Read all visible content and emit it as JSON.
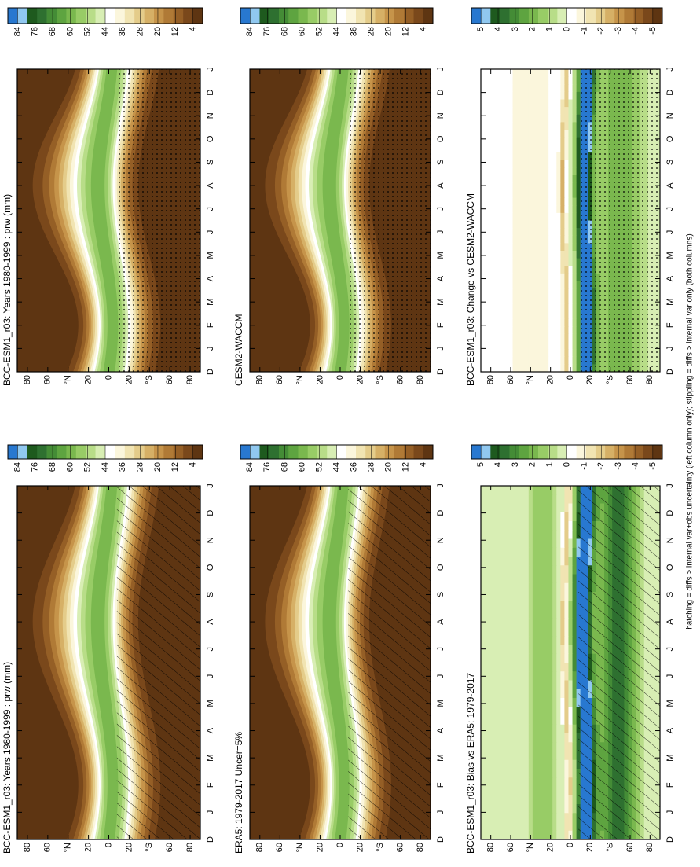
{
  "chart_data": [
    {
      "type": "contour",
      "field": "mean",
      "title": "BCC-ESM1_r03: Years 1980-1999 : prw (mm)",
      "categories": [
        "D",
        "J",
        "F",
        "M",
        "A",
        "M",
        "J",
        "J",
        "A",
        "S",
        "O",
        "N",
        "D",
        "J"
      ],
      "ylim": [
        90,
        -90
      ],
      "yticks": [
        80,
        60,
        {
          "value": 40,
          "label": "°N"
        },
        20,
        0,
        {
          "value": -20,
          "label": "20"
        },
        {
          "value": -40,
          "label": "°S"
        },
        {
          "value": -60,
          "label": "60"
        },
        {
          "value": -80,
          "label": "80"
        }
      ],
      "hatching": true,
      "stippling": false,
      "colorbar": {
        "ticks": [
          84,
          76,
          68,
          60,
          52,
          44,
          36,
          28,
          20,
          12,
          4
        ],
        "colors": [
          "#2878d0",
          "#90c8f0",
          "#1e5a1e",
          "#2e7030",
          "#448c36",
          "#5ea440",
          "#7ab84e",
          "#98cc66",
          "#b8dd88",
          "#d8eeb4",
          "#ffffff",
          "#fbf6dc",
          "#f1e4b2",
          "#e4cc8a",
          "#d6b066",
          "#c6944a",
          "#b07a36",
          "#955f26",
          "#7a481b",
          "#5e3512"
        ]
      }
    },
    {
      "type": "contour",
      "field": "mean",
      "title": "BCC-ESM1_r03: Years 1980-1999 : prw (mm)",
      "categories": [
        "D",
        "J",
        "F",
        "M",
        "A",
        "M",
        "J",
        "J",
        "A",
        "S",
        "O",
        "N",
        "D",
        "J"
      ],
      "ylim": [
        90,
        -90
      ],
      "yticks": [
        80,
        60,
        {
          "value": 40,
          "label": "°N"
        },
        20,
        0,
        {
          "value": -20,
          "label": "20"
        },
        {
          "value": -40,
          "label": "°S"
        },
        {
          "value": -60,
          "label": "60"
        },
        {
          "value": -80,
          "label": "80"
        }
      ],
      "hatching": false,
      "stippling": true,
      "colorbar": {
        "ticks": [
          84,
          76,
          68,
          60,
          52,
          44,
          36,
          28,
          20,
          12,
          4
        ],
        "colors": [
          "#2878d0",
          "#90c8f0",
          "#1e5a1e",
          "#2e7030",
          "#448c36",
          "#5ea440",
          "#7ab84e",
          "#98cc66",
          "#b8dd88",
          "#d8eeb4",
          "#ffffff",
          "#fbf6dc",
          "#f1e4b2",
          "#e4cc8a",
          "#d6b066",
          "#c6944a",
          "#b07a36",
          "#955f26",
          "#7a481b",
          "#5e3512"
        ]
      }
    },
    {
      "type": "contour",
      "field": "mean",
      "title": "ERA5: 1979-2017 Uncer=5%",
      "categories": [
        "D",
        "J",
        "F",
        "M",
        "A",
        "M",
        "J",
        "J",
        "A",
        "S",
        "O",
        "N",
        "D",
        "J"
      ],
      "ylim": [
        90,
        -90
      ],
      "yticks": [
        80,
        60,
        {
          "value": 40,
          "label": "°N"
        },
        20,
        0,
        {
          "value": -20,
          "label": "20"
        },
        {
          "value": -40,
          "label": "°S"
        },
        {
          "value": -60,
          "label": "60"
        },
        {
          "value": -80,
          "label": "80"
        }
      ],
      "hatching": true,
      "stippling": false,
      "colorbar": {
        "ticks": [
          84,
          76,
          68,
          60,
          52,
          44,
          36,
          28,
          20,
          12,
          4
        ],
        "colors": [
          "#2878d0",
          "#90c8f0",
          "#1e5a1e",
          "#2e7030",
          "#448c36",
          "#5ea440",
          "#7ab84e",
          "#98cc66",
          "#b8dd88",
          "#d8eeb4",
          "#ffffff",
          "#fbf6dc",
          "#f1e4b2",
          "#e4cc8a",
          "#d6b066",
          "#c6944a",
          "#b07a36",
          "#955f26",
          "#7a481b",
          "#5e3512"
        ]
      }
    },
    {
      "type": "contour",
      "field": "mean",
      "title": "CESM2-WACCM",
      "categories": [
        "D",
        "J",
        "F",
        "M",
        "A",
        "M",
        "J",
        "J",
        "A",
        "S",
        "O",
        "N",
        "D",
        "J"
      ],
      "ylim": [
        90,
        -90
      ],
      "yticks": [
        80,
        60,
        {
          "value": 40,
          "label": "°N"
        },
        20,
        0,
        {
          "value": -20,
          "label": "20"
        },
        {
          "value": -40,
          "label": "°S"
        },
        {
          "value": -60,
          "label": "60"
        },
        {
          "value": -80,
          "label": "80"
        }
      ],
      "hatching": false,
      "stippling": true,
      "colorbar": {
        "ticks": [
          84,
          76,
          68,
          60,
          52,
          44,
          36,
          28,
          20,
          12,
          4
        ],
        "colors": [
          "#2878d0",
          "#90c8f0",
          "#1e5a1e",
          "#2e7030",
          "#448c36",
          "#5ea440",
          "#7ab84e",
          "#98cc66",
          "#b8dd88",
          "#d8eeb4",
          "#ffffff",
          "#fbf6dc",
          "#f1e4b2",
          "#e4cc8a",
          "#d6b066",
          "#c6944a",
          "#b07a36",
          "#955f26",
          "#7a481b",
          "#5e3512"
        ]
      }
    },
    {
      "type": "contour",
      "field": "bias",
      "title": "BCC-ESM1_r03: Bias vs ERA5: 1979-2017",
      "categories": [
        "D",
        "J",
        "F",
        "M",
        "A",
        "M",
        "J",
        "J",
        "A",
        "S",
        "O",
        "N",
        "D",
        "J"
      ],
      "ylim": [
        90,
        -90
      ],
      "yticks": [
        80,
        60,
        {
          "value": 40,
          "label": "°N"
        },
        20,
        0,
        {
          "value": -20,
          "label": "20"
        },
        {
          "value": -40,
          "label": "°S"
        },
        {
          "value": -60,
          "label": "60"
        },
        {
          "value": -80,
          "label": "80"
        }
      ],
      "hatching": true,
      "stippling": false,
      "colorbar": {
        "ticks": [
          5,
          4,
          3,
          2,
          1,
          0,
          -1,
          -2,
          -3,
          -4,
          -5
        ],
        "colors": [
          "#2878d0",
          "#90c8f0",
          "#1e5a1e",
          "#2e7030",
          "#448c36",
          "#5ea440",
          "#7ab84e",
          "#98cc66",
          "#b8dd88",
          "#d8eeb4",
          "#ffffff",
          "#fbf6dc",
          "#f1e4b2",
          "#e4cc8a",
          "#d6b066",
          "#c6944a",
          "#b07a36",
          "#955f26",
          "#7a481b",
          "#5e3512"
        ]
      }
    },
    {
      "type": "contour",
      "field": "change",
      "title": "BCC-ESM1_r03: Change vs CESM2-WACCM",
      "categories": [
        "D",
        "J",
        "F",
        "M",
        "A",
        "M",
        "J",
        "J",
        "A",
        "S",
        "O",
        "N",
        "D",
        "J"
      ],
      "ylim": [
        90,
        -90
      ],
      "yticks": [
        80,
        60,
        {
          "value": 40,
          "label": "°N"
        },
        20,
        0,
        {
          "value": -20,
          "label": "20"
        },
        {
          "value": -40,
          "label": "°S"
        },
        {
          "value": -60,
          "label": "60"
        },
        {
          "value": -80,
          "label": "80"
        }
      ],
      "hatching": false,
      "stippling": true,
      "colorbar": {
        "ticks": [
          5,
          4,
          3,
          2,
          1,
          0,
          -1,
          -2,
          -3,
          -4,
          -5
        ],
        "colors": [
          "#2878d0",
          "#90c8f0",
          "#1e5a1e",
          "#2e7030",
          "#448c36",
          "#5ea440",
          "#7ab84e",
          "#98cc66",
          "#b8dd88",
          "#d8eeb4",
          "#ffffff",
          "#fbf6dc",
          "#f1e4b2",
          "#e4cc8a",
          "#d6b066",
          "#c6944a",
          "#b07a36",
          "#955f26",
          "#7a481b",
          "#5e3512"
        ]
      }
    }
  ],
  "footer_text": "hatching = diffs > internal var+obs uncertainty (left column only); stippling = diffs > internal var only (both columns)"
}
